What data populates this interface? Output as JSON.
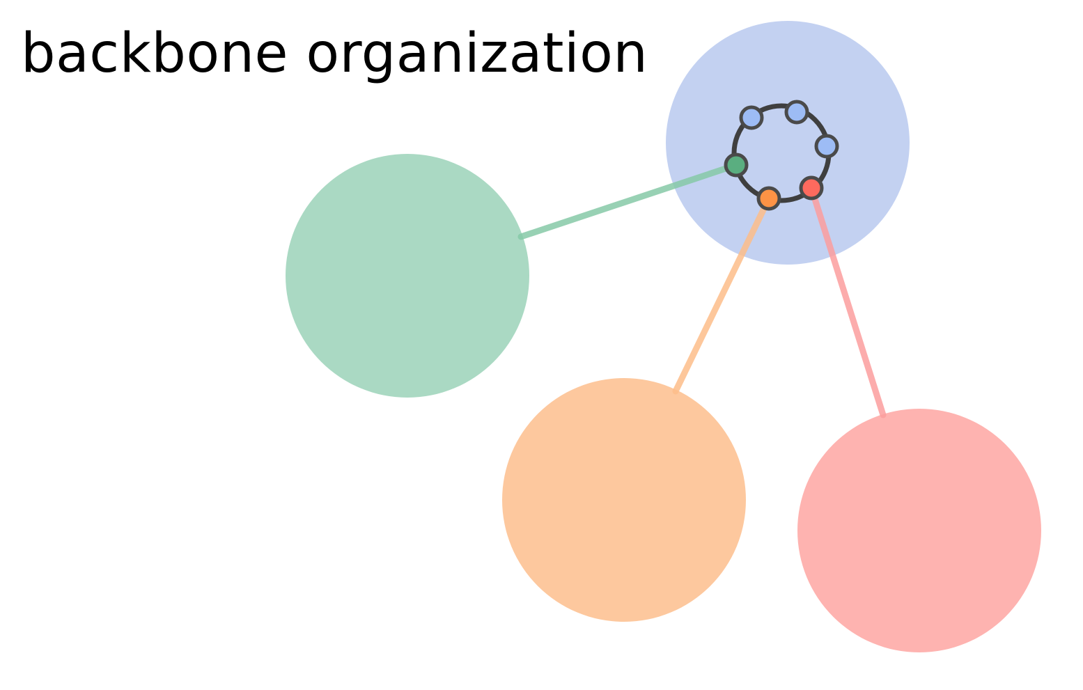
{
  "title": "backbone organization",
  "colors": {
    "background": "#ffffff",
    "backbone_cluster": "#c3d1f1",
    "green_cluster": "#aad9c3",
    "orange_cluster": "#fdc89e",
    "red_cluster": "#feb3b0",
    "ring_stroke": "#3f3f3f",
    "node_blue": "#9dbcf5",
    "node_green": "#5aae80",
    "node_orange": "#fe9345",
    "node_red": "#fe6a5e",
    "link_green": "#86c9a7",
    "link_orange": "#fdbd89",
    "link_red": "#fb9e9e"
  },
  "clusters": [
    {
      "id": "backbone",
      "color_key": "backbone_cluster"
    },
    {
      "id": "green",
      "color_key": "green_cluster"
    },
    {
      "id": "orange",
      "color_key": "orange_cluster"
    },
    {
      "id": "red",
      "color_key": "red_cluster"
    }
  ],
  "ring_nodes": [
    {
      "id": "blue-1",
      "color_key": "node_blue"
    },
    {
      "id": "blue-2",
      "color_key": "node_blue"
    },
    {
      "id": "blue-3",
      "color_key": "node_blue"
    },
    {
      "id": "green",
      "color_key": "node_green"
    },
    {
      "id": "orange",
      "color_key": "node_orange"
    },
    {
      "id": "red",
      "color_key": "node_red"
    }
  ],
  "links": [
    {
      "from": "green",
      "to": "green",
      "color_key": "link_green"
    },
    {
      "from": "orange",
      "to": "orange",
      "color_key": "link_orange"
    },
    {
      "from": "red",
      "to": "red",
      "color_key": "link_red"
    }
  ]
}
